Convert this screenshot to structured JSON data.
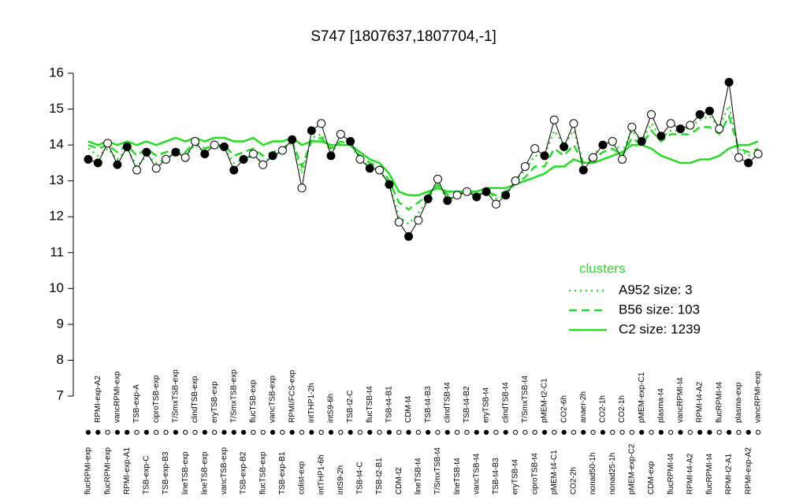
{
  "chart_data": {
    "type": "line",
    "title": "S747 [1807637,1807704,-1]",
    "categories": [
      "flucRPMI-exp",
      "RPMI-exp-A2",
      "flucRPMI-exp",
      "vancRPMI-exp",
      "RPMI-exp-A1",
      "TSB-exp-A",
      "TSB-exp-C",
      "ciproTSB-exp",
      "TSB-exp-B3",
      "T/SmxTSB-exp",
      "lineTSB-exp",
      "clindTSB-exp",
      "lineTSB-exp",
      "eryTSB-exp",
      "vancTSB-exp",
      "T/SmxTSB-exp",
      "TSB-exp-B2",
      "flucTSB-exp",
      "flucTSB-exp",
      "vancTSB-exp",
      "TSB-exp-B1",
      "RPMI/FCS-exp",
      "colist-exp",
      "intTHP1-2h",
      "intTHP1-6h",
      "intS9-6h",
      "intS9-2h",
      "TSB-t2-C",
      "TSB-t4-C",
      "flucTSB-t4",
      "TSB-t2-B1",
      "TSB-t4-B1",
      "CDM-t2",
      "CDM-t4",
      "lineTSB-t4",
      "TSB-t4-B3",
      "T/SmxTSB-t4",
      "clindTSB-t4",
      "lineTSB-t4",
      "TSB-t4-B2",
      "vancTSB-t4",
      "eryTSB-t4",
      "TSB-t4-B3",
      "clindTSB-t4",
      "eryTSB-t4",
      "T/SmxTSB-t4",
      "ciproTSB-t4",
      "pMEM-t2-C1",
      "pMEM-t4-C1",
      "CO2-6h",
      "CO2-2h",
      "anaer-2h",
      "nonad50-1h",
      "CO2-1h",
      "nonad25-1h",
      "CO2-1h",
      "pMEM-exp-C2",
      "pMEM-exp-C1",
      "CDM-exp",
      "plasma-t4",
      "flucRPMI-t4",
      "vancRPMI-t4",
      "RPMI-t4-A2",
      "RPMI-t4-A2",
      "flucRPMI-t4",
      "flucRPMI-t4",
      "RPMI-t2-A1",
      "plasma-exp",
      "RPMI-exp-A2",
      "vancRPMI-exp"
    ],
    "values": [
      13.6,
      13.5,
      14.05,
      13.45,
      13.95,
      13.3,
      13.8,
      13.35,
      13.6,
      13.8,
      13.65,
      14.1,
      13.75,
      14.0,
      13.95,
      13.3,
      13.6,
      13.75,
      13.45,
      13.7,
      13.85,
      14.15,
      12.8,
      14.4,
      14.6,
      13.7,
      14.3,
      14.1,
      13.6,
      13.35,
      13.3,
      12.9,
      11.85,
      11.45,
      11.9,
      12.5,
      13.05,
      12.45,
      12.6,
      12.7,
      12.55,
      12.7,
      12.35,
      12.6,
      13.0,
      13.4,
      13.9,
      13.7,
      14.7,
      13.95,
      14.6,
      13.3,
      13.65,
      14.0,
      14.1,
      13.6,
      14.5,
      14.1,
      14.85,
      14.25,
      14.6,
      14.45,
      14.55,
      14.85,
      14.95,
      14.45,
      15.75,
      13.65,
      13.5,
      13.75
    ],
    "filled": [
      1,
      1,
      0,
      1,
      1,
      0,
      1,
      0,
      0,
      1,
      0,
      0,
      1,
      0,
      1,
      1,
      1,
      0,
      0,
      1,
      0,
      1,
      0,
      1,
      0,
      1,
      0,
      1,
      0,
      1,
      0,
      1,
      0,
      1,
      0,
      1,
      0,
      1,
      0,
      0,
      1,
      1,
      0,
      1,
      0,
      0,
      0,
      1,
      0,
      1,
      0,
      1,
      0,
      1,
      0,
      0,
      0,
      1,
      0,
      1,
      0,
      1,
      0,
      1,
      1,
      0,
      1,
      0,
      1,
      0
    ],
    "series": [
      {
        "name": "A952 size: 3",
        "color": "#22dd22",
        "dash": "dotted",
        "values": [
          13.9,
          13.7,
          13.9,
          13.6,
          13.9,
          13.4,
          13.7,
          13.5,
          13.6,
          13.8,
          13.7,
          14.0,
          13.8,
          14.0,
          13.9,
          13.5,
          13.6,
          13.7,
          13.5,
          13.7,
          13.8,
          14.1,
          13.2,
          14.2,
          14.3,
          13.8,
          14.1,
          14.0,
          13.6,
          13.4,
          13.3,
          12.9,
          12.0,
          11.8,
          12.1,
          12.5,
          12.9,
          12.5,
          12.6,
          12.7,
          12.6,
          12.7,
          12.5,
          12.6,
          13.0,
          13.3,
          13.7,
          13.7,
          14.4,
          14.0,
          14.4,
          13.5,
          13.7,
          14.0,
          14.1,
          13.8,
          14.4,
          14.1,
          14.6,
          14.2,
          14.4,
          14.4,
          14.5,
          14.7,
          14.8,
          14.5,
          15.1,
          13.9,
          13.7,
          13.8
        ]
      },
      {
        "name": "B56 size: 103",
        "color": "#22dd22",
        "dash": "dashed",
        "values": [
          14.0,
          13.9,
          14.0,
          13.8,
          14.0,
          13.7,
          13.9,
          13.7,
          13.8,
          13.9,
          13.8,
          14.1,
          13.9,
          14.0,
          14.0,
          13.7,
          13.8,
          13.9,
          13.7,
          13.8,
          13.9,
          14.1,
          13.4,
          14.1,
          14.2,
          13.9,
          14.1,
          14.0,
          13.7,
          13.5,
          13.4,
          13.0,
          12.4,
          12.2,
          12.4,
          12.6,
          12.9,
          12.6,
          12.7,
          12.7,
          12.6,
          12.7,
          12.6,
          12.7,
          12.9,
          13.1,
          13.4,
          13.4,
          13.9,
          13.7,
          14.0,
          13.5,
          13.6,
          13.8,
          13.9,
          13.7,
          14.2,
          14.0,
          14.4,
          14.1,
          14.3,
          14.3,
          14.3,
          14.5,
          14.5,
          14.3,
          14.8,
          13.9,
          13.8,
          13.9
        ]
      },
      {
        "name": "C2 size: 1239",
        "color": "#22dd22",
        "dash": "solid",
        "values": [
          14.1,
          14.0,
          14.1,
          14.0,
          14.1,
          14.0,
          14.1,
          14.0,
          14.1,
          14.2,
          14.1,
          14.2,
          14.1,
          14.2,
          14.2,
          14.1,
          14.1,
          14.2,
          14.0,
          14.1,
          14.1,
          14.2,
          14.0,
          14.1,
          14.1,
          14.0,
          14.0,
          14.0,
          13.8,
          13.6,
          13.5,
          13.2,
          12.7,
          12.6,
          12.6,
          12.7,
          12.8,
          12.7,
          12.7,
          12.7,
          12.7,
          12.8,
          12.8,
          12.8,
          12.9,
          13.0,
          13.1,
          13.2,
          13.4,
          13.4,
          13.6,
          13.5,
          13.5,
          13.6,
          13.7,
          13.8,
          14.0,
          14.0,
          13.9,
          13.7,
          13.6,
          13.5,
          13.5,
          13.6,
          13.6,
          13.7,
          13.9,
          14.0,
          14.0,
          14.1
        ]
      }
    ],
    "legend_title": "clusters",
    "ylim": [
      7,
      16
    ],
    "yticks": [
      7,
      8,
      9,
      10,
      11,
      12,
      13,
      14,
      15,
      16
    ],
    "legend": "right"
  }
}
